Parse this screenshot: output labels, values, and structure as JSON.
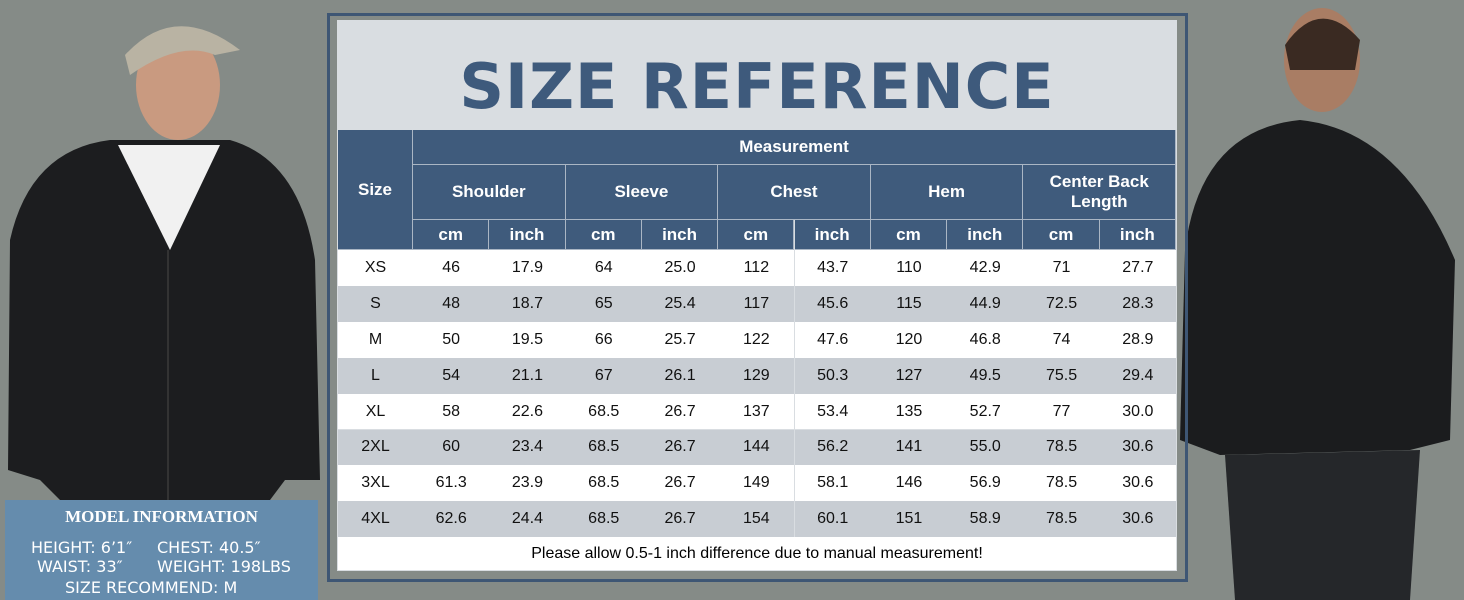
{
  "header": {
    "title": "SIZE REFERENCE"
  },
  "table": {
    "size_header": "Size",
    "group_header": "Measurement",
    "columns": [
      "Shoulder",
      "Sleeve",
      "Chest",
      "Hem",
      "Center Back Length"
    ],
    "units": [
      "cm",
      "inch",
      "cm",
      "inch",
      "cm",
      "inch",
      "cm",
      "inch",
      "cm",
      "inch"
    ],
    "rows": [
      [
        "XS",
        "46",
        "17.9",
        "64",
        "25.0",
        "112",
        "43.7",
        "110",
        "42.9",
        "71",
        "27.7"
      ],
      [
        "S",
        "48",
        "18.7",
        "65",
        "25.4",
        "117",
        "45.6",
        "115",
        "44.9",
        "72.5",
        "28.3"
      ],
      [
        "M",
        "50",
        "19.5",
        "66",
        "25.7",
        "122",
        "47.6",
        "120",
        "46.8",
        "74",
        "28.9"
      ],
      [
        "L",
        "54",
        "21.1",
        "67",
        "26.1",
        "129",
        "50.3",
        "127",
        "49.5",
        "75.5",
        "29.4"
      ],
      [
        "XL",
        "58",
        "22.6",
        "68.5",
        "26.7",
        "137",
        "53.4",
        "135",
        "52.7",
        "77",
        "30.0"
      ],
      [
        "2XL",
        "60",
        "23.4",
        "68.5",
        "26.7",
        "144",
        "56.2",
        "141",
        "55.0",
        "78.5",
        "30.6"
      ],
      [
        "3XL",
        "61.3",
        "23.9",
        "68.5",
        "26.7",
        "149",
        "58.1",
        "146",
        "56.9",
        "78.5",
        "30.6"
      ],
      [
        "4XL",
        "62.6",
        "24.4",
        "68.5",
        "26.7",
        "154",
        "60.1",
        "151",
        "58.9",
        "78.5",
        "30.6"
      ]
    ],
    "note": "Please allow 0.5-1 inch difference due to manual measurement!"
  },
  "model_info": {
    "title": "MODEL INFORMATION",
    "lines": [
      "HEIGHT: 6’1″",
      "CHEST: 40.5″",
      "WAIST: 33″",
      "WEIGHT: 198LBS",
      "SIZE RECOMMEND: M"
    ]
  }
}
